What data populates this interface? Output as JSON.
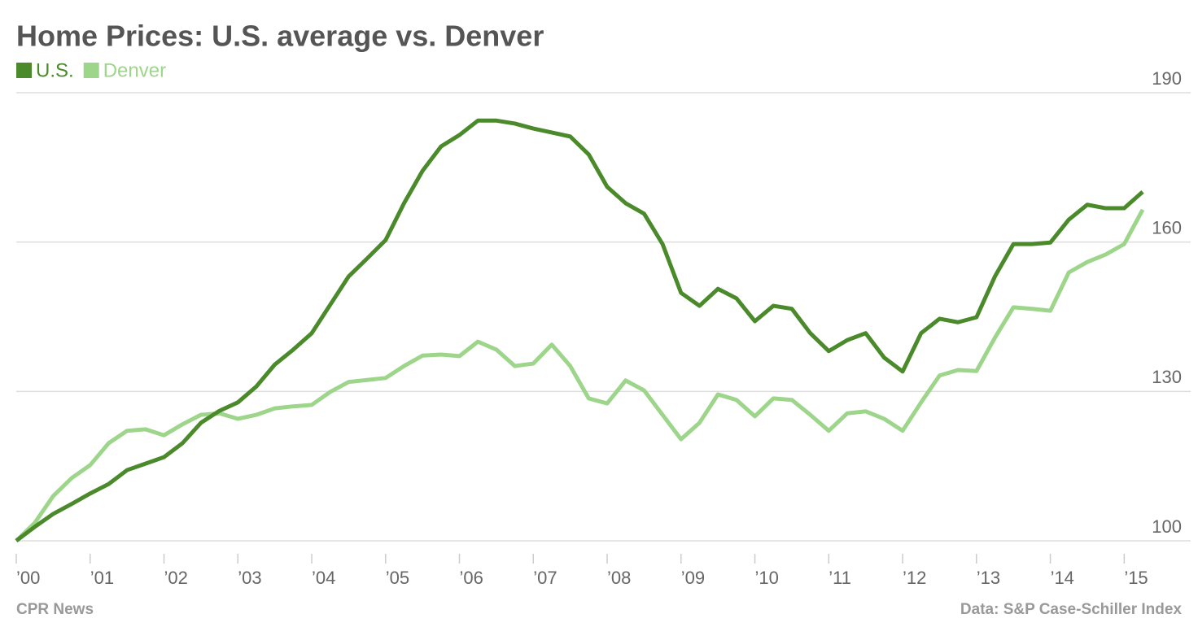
{
  "chart_data": {
    "type": "line",
    "title": "Home Prices: U.S. average vs. Denver",
    "source": "CPR News",
    "credit": "Data: S&P Case-Schiller Index",
    "x": [
      2000,
      2000.25,
      2000.5,
      2000.75,
      2001,
      2001.25,
      2001.5,
      2001.75,
      2002,
      2002.25,
      2002.5,
      2002.75,
      2003,
      2003.25,
      2003.5,
      2003.75,
      2004,
      2004.25,
      2004.5,
      2004.75,
      2005,
      2005.25,
      2005.5,
      2005.75,
      2006,
      2006.25,
      2006.5,
      2006.75,
      2007,
      2007.25,
      2007.5,
      2007.75,
      2008,
      2008.25,
      2008.5,
      2008.75,
      2009,
      2009.25,
      2009.5,
      2009.75,
      2010,
      2010.25,
      2010.5,
      2010.75,
      2011,
      2011.25,
      2011.5,
      2011.75,
      2012,
      2012.25,
      2012.5,
      2012.75,
      2013,
      2013.25,
      2013.5,
      2013.75,
      2014,
      2014.25,
      2014.5,
      2014.75,
      2015,
      2015.25
    ],
    "series": [
      {
        "name": "U.S.",
        "color": "#4a8a2a",
        "values": [
          100,
          102.8,
          105.4,
          107.4,
          109.5,
          111.4,
          114.2,
          115.5,
          116.8,
          119.6,
          123.7,
          126.1,
          127.8,
          131.0,
          135.4,
          138.4,
          141.7,
          147.4,
          153.1,
          156.7,
          160.4,
          167.8,
          174.3,
          179.2,
          181.5,
          184.4,
          184.4,
          183.8,
          182.8,
          182.0,
          181.2,
          177.6,
          171.1,
          167.8,
          165.7,
          159.6,
          149.8,
          147.2,
          150.6,
          148.7,
          144.1,
          147.2,
          146.6,
          141.7,
          138.1,
          140.3,
          141.7,
          136.8,
          134.0,
          141.7,
          144.6,
          143.9,
          144.9,
          153.1,
          159.6,
          159.6,
          159.9,
          164.5,
          167.5,
          166.8,
          166.8,
          170.1
        ]
      },
      {
        "name": "Denver",
        "color": "#9dd58a",
        "values": [
          100,
          103.6,
          109.0,
          112.6,
          115.2,
          119.6,
          122.1,
          122.4,
          121.2,
          123.4,
          125.3,
          125.6,
          124.5,
          125.3,
          126.6,
          127.0,
          127.3,
          129.9,
          131.9,
          132.3,
          132.7,
          135.1,
          137.2,
          137.4,
          137.1,
          140.0,
          138.4,
          135.1,
          135.6,
          139.4,
          135.1,
          128.6,
          127.6,
          132.2,
          130.2,
          125.3,
          120.4,
          123.7,
          129.4,
          128.3,
          125.0,
          128.6,
          128.3,
          125.3,
          122.1,
          125.6,
          126.0,
          124.5,
          122.1,
          127.8,
          133.2,
          134.3,
          134.1,
          140.8,
          146.9,
          146.6,
          146.2,
          153.9,
          156.0,
          157.5,
          159.6,
          166.5
        ]
      }
    ],
    "xlim": [
      2000,
      2015.9
    ],
    "xticks": [
      {
        "value": 2000,
        "label": "’00"
      },
      {
        "value": 2001,
        "label": "’01"
      },
      {
        "value": 2002,
        "label": "’02"
      },
      {
        "value": 2003,
        "label": "’03"
      },
      {
        "value": 2004,
        "label": "’04"
      },
      {
        "value": 2005,
        "label": "’05"
      },
      {
        "value": 2006,
        "label": "’06"
      },
      {
        "value": 2007,
        "label": "’07"
      },
      {
        "value": 2008,
        "label": "’08"
      },
      {
        "value": 2009,
        "label": "’09"
      },
      {
        "value": 2010,
        "label": "’10"
      },
      {
        "value": 2011,
        "label": "’11"
      },
      {
        "value": 2012,
        "label": "’12"
      },
      {
        "value": 2013,
        "label": "’13"
      },
      {
        "value": 2014,
        "label": "’14"
      },
      {
        "value": 2015,
        "label": "’15"
      }
    ],
    "ylim": [
      100,
      190
    ],
    "yticks": [
      100,
      130,
      160,
      190
    ],
    "grid": true
  }
}
